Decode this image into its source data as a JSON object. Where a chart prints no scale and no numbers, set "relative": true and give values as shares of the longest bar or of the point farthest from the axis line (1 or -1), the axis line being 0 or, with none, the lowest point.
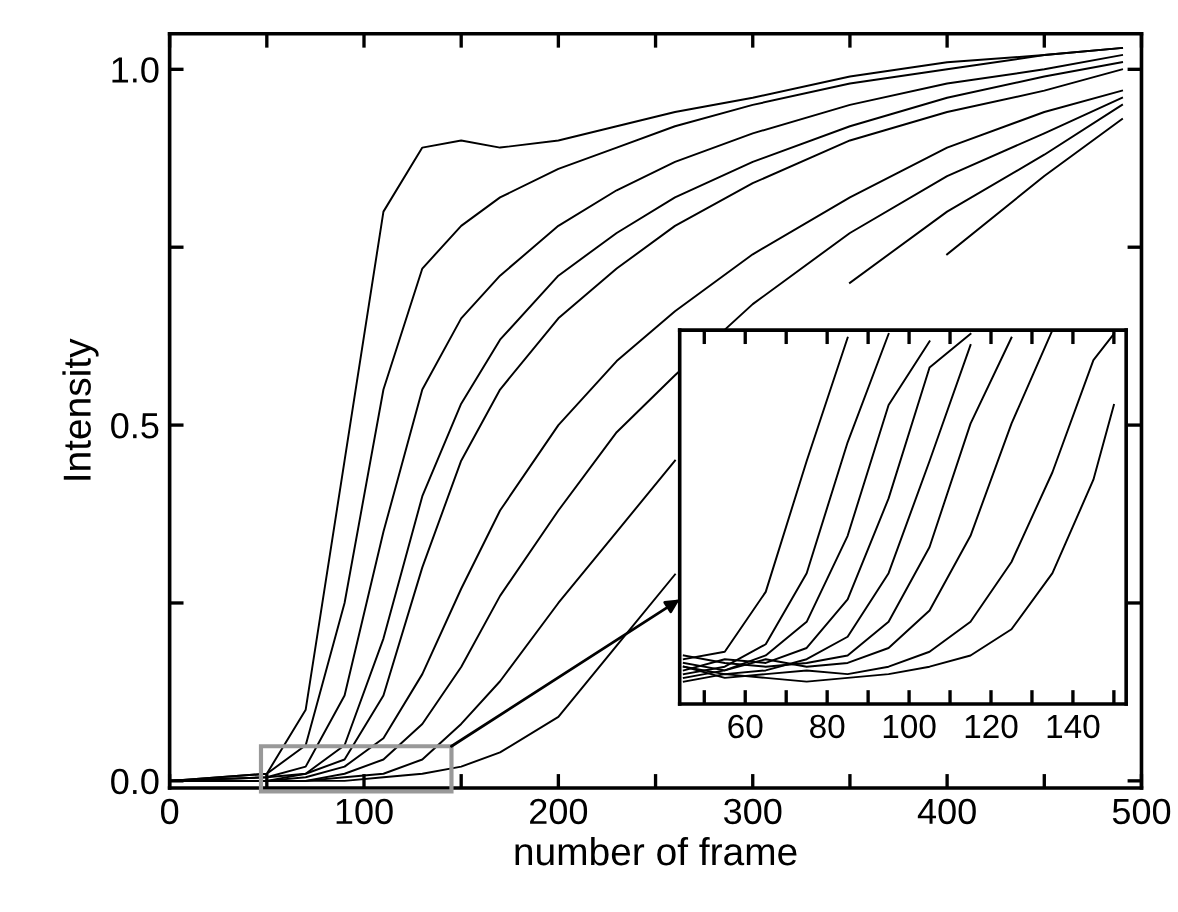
{
  "chart_data": [
    {
      "type": "line",
      "xlabel": "number of frame",
      "ylabel": "Intensity",
      "xlim": [
        0,
        500
      ],
      "ylim": [
        -0.01,
        1.05
      ],
      "xticks": [
        0,
        {
          "value": 50,
          "label": null
        },
        100,
        {
          "value": 150,
          "label": null
        },
        200,
        {
          "value": 250,
          "label": null
        },
        300,
        {
          "value": 350,
          "label": null
        },
        400,
        {
          "value": 450,
          "label": null
        },
        500
      ],
      "yticks": [
        {
          "value": 0,
          "label": "0.0"
        },
        {
          "value": 0.25,
          "label": null
        },
        0.5,
        {
          "value": 0.75,
          "label": null
        },
        {
          "value": 1.0,
          "label": "1.0"
        }
      ],
      "grid": false,
      "legend": false,
      "marker": "none",
      "line_style": "solid",
      "x": [
        0,
        50,
        70,
        90,
        110,
        130,
        150,
        170,
        200,
        230,
        260,
        300,
        350,
        400,
        450,
        490
      ],
      "series": [
        {
          "color": "#000000",
          "values": [
            0,
            0.01,
            0.1,
            0.45,
            0.8,
            0.89,
            0.9,
            0.89,
            0.9,
            0.92,
            0.94,
            0.96,
            0.99,
            1.01,
            1.02,
            1.03
          ]
        },
        {
          "color": "#000000",
          "values": [
            0,
            0.01,
            0.05,
            0.25,
            0.55,
            0.72,
            0.78,
            0.82,
            0.86,
            0.89,
            0.92,
            0.95,
            0.98,
            1.0,
            1.02,
            1.03
          ]
        },
        {
          "color": "#000000",
          "values": [
            0,
            0.005,
            0.02,
            0.12,
            0.35,
            0.55,
            0.65,
            0.71,
            0.78,
            0.83,
            0.87,
            0.91,
            0.95,
            0.98,
            1.0,
            1.02
          ]
        },
        {
          "color": "#000000",
          "values": [
            0,
            0.005,
            0.01,
            0.05,
            0.2,
            0.4,
            0.53,
            0.62,
            0.71,
            0.77,
            0.82,
            0.87,
            0.92,
            0.96,
            0.99,
            1.01
          ]
        },
        {
          "color": "#000000",
          "values": [
            0,
            0,
            0.01,
            0.03,
            0.12,
            0.3,
            0.45,
            0.55,
            0.65,
            0.72,
            0.78,
            0.84,
            0.9,
            0.94,
            0.97,
            1.0
          ]
        },
        {
          "color": "#000000",
          "values": [
            0,
            0,
            0.005,
            0.02,
            0.06,
            0.15,
            0.27,
            0.38,
            0.5,
            0.59,
            0.66,
            0.74,
            0.82,
            0.89,
            0.94,
            0.97
          ]
        },
        {
          "color": "#000000",
          "values": [
            0,
            0,
            0,
            0.01,
            0.03,
            0.08,
            0.16,
            0.26,
            0.38,
            0.49,
            0.57,
            0.67,
            0.77,
            0.85,
            0.91,
            0.96
          ]
        },
        {
          "color": "#000000",
          "values": [
            0,
            0,
            0,
            0.005,
            0.01,
            0.03,
            0.08,
            0.14,
            0.25,
            0.35,
            0.45,
            null,
            0.7,
            0.8,
            0.88,
            0.95
          ]
        },
        {
          "color": "#000000",
          "values": [
            0,
            0,
            0,
            0,
            0.005,
            0.01,
            0.02,
            0.04,
            0.09,
            0.19,
            0.29,
            null,
            null,
            0.74,
            0.85,
            0.93
          ]
        }
      ]
    },
    {
      "type": "line",
      "relative": true,
      "tick_labels": "x",
      "xlim": [
        44,
        153
      ],
      "xticks": [
        {
          "value": 50,
          "label": null
        },
        60,
        {
          "value": 70,
          "label": null
        },
        80,
        {
          "value": 90,
          "label": null
        },
        100,
        {
          "value": 110,
          "label": null
        },
        120,
        {
          "value": 130,
          "label": null
        },
        140,
        {
          "value": 150,
          "label": null
        }
      ],
      "grid": false,
      "legend": false,
      "marker": "none",
      "line_style": "solid",
      "x": [
        45,
        55,
        65,
        75,
        85,
        95,
        105,
        115,
        125,
        135,
        145,
        150
      ],
      "series": [
        {
          "color": "#000000",
          "values": [
            0.12,
            0.14,
            0.3,
            0.65,
            0.98,
            null,
            null,
            null,
            null,
            null,
            null,
            null
          ]
        },
        {
          "color": "#000000",
          "values": [
            0.08,
            0.1,
            0.16,
            0.35,
            0.7,
            0.99,
            null,
            null,
            null,
            null,
            null,
            null
          ]
        },
        {
          "color": "#000000",
          "values": [
            0.11,
            0.09,
            0.13,
            0.22,
            0.45,
            0.8,
            0.97,
            null,
            null,
            null,
            null,
            null
          ]
        },
        {
          "color": "#000000",
          "values": [
            0.09,
            0.12,
            0.11,
            0.15,
            0.28,
            0.55,
            0.9,
            0.99,
            null,
            null,
            null,
            null
          ]
        },
        {
          "color": "#000000",
          "values": [
            0.1,
            0.08,
            0.09,
            0.12,
            0.18,
            0.35,
            0.65,
            0.96,
            null,
            null,
            null,
            null
          ]
        },
        {
          "color": "#000000",
          "values": [
            0.13,
            0.11,
            0.1,
            0.11,
            0.13,
            0.22,
            0.42,
            0.75,
            0.98,
            null,
            null,
            null
          ]
        },
        {
          "color": "#000000",
          "values": [
            0.07,
            0.09,
            0.12,
            0.1,
            0.11,
            0.15,
            0.25,
            0.45,
            0.75,
            1.0,
            null,
            null
          ]
        },
        {
          "color": "#000000",
          "values": [
            0.1,
            0.07,
            0.08,
            0.09,
            0.08,
            0.1,
            0.14,
            0.22,
            0.38,
            0.62,
            0.92,
            0.99
          ]
        },
        {
          "color": "#000000",
          "values": [
            0.06,
            0.08,
            0.07,
            0.06,
            0.07,
            0.08,
            0.1,
            0.13,
            0.2,
            0.35,
            0.6,
            0.8
          ]
        }
      ]
    }
  ]
}
